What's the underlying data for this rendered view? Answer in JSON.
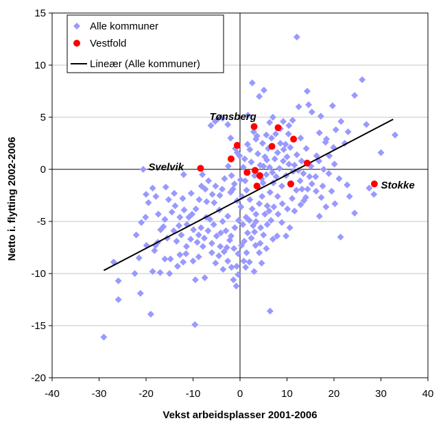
{
  "chart_data": {
    "type": "scatter",
    "title": "",
    "xlabel": "Vekst arbeidsplasser 2001-2006",
    "ylabel": "Netto i. flytting 2002-2006",
    "xlim": [
      -40,
      40
    ],
    "ylim": [
      -20,
      15
    ],
    "xticks": [
      -40,
      -30,
      -20,
      -10,
      0,
      10,
      20,
      30,
      40
    ],
    "yticks": [
      -20,
      -15,
      -10,
      -5,
      0,
      5,
      10,
      15
    ],
    "xtick_labels": [
      "-40",
      "-30",
      "-20",
      "-10",
      "0",
      "10",
      "20",
      "30",
      "40"
    ],
    "ytick_labels": [
      "-20",
      "-15",
      "-10",
      "-5",
      "0",
      "5",
      "10",
      "15"
    ],
    "grid": "horizontal",
    "legend_position": "top-left",
    "series": [
      {
        "name": "Alle kommuner",
        "marker": "diamond",
        "color": "#9999ff",
        "points": [
          [
            -29.0,
            -16.1
          ],
          [
            -26.9,
            -8.9
          ],
          [
            -25.9,
            -10.7
          ],
          [
            -25.9,
            -12.5
          ],
          [
            -22.4,
            -10.0
          ],
          [
            -21.2,
            -11.9
          ],
          [
            -21.5,
            -8.5
          ],
          [
            -19.0,
            -13.9
          ],
          [
            -20.6,
            0.0
          ],
          [
            -18.6,
            -9.8
          ],
          [
            -18.0,
            -7.3
          ],
          [
            -17.0,
            -9.9
          ],
          [
            -16.0,
            -8.6
          ],
          [
            -15.0,
            -10.0
          ],
          [
            -14.8,
            -8.6
          ],
          [
            -13.5,
            -6.9
          ],
          [
            -12.8,
            -8.2
          ],
          [
            -12.1,
            -8.9
          ],
          [
            -11.5,
            -8.1
          ],
          [
            -10.2,
            -4.3
          ],
          [
            -9.5,
            -10.6
          ],
          [
            -8.8,
            -8.4
          ],
          [
            -7.9,
            -7.4
          ],
          [
            -9.6,
            -14.9
          ],
          [
            -7.5,
            -10.4
          ],
          [
            -6.2,
            4.2
          ],
          [
            -5.3,
            4.6
          ],
          [
            -4.8,
            4.8
          ],
          [
            -3.7,
            4.9
          ],
          [
            -2.6,
            4.3
          ],
          [
            -2.0,
            3.0
          ],
          [
            -1.0,
            2.0
          ],
          [
            -0.6,
            1.6
          ],
          [
            -0.1,
            1.3
          ],
          [
            -2.0,
            -2.2
          ],
          [
            -2.6,
            -4.5
          ],
          [
            -3.7,
            -5.0
          ],
          [
            -4.3,
            -2.5
          ],
          [
            -5.5,
            -3.2
          ],
          [
            -6.4,
            -4.8
          ],
          [
            -7.1,
            -3.1
          ],
          [
            -8.2,
            -1.6
          ],
          [
            -10.5,
            -6.7
          ],
          [
            -11.9,
            -3.9
          ],
          [
            -13.0,
            -5.4
          ],
          [
            -13.8,
            -3.5
          ],
          [
            -14.5,
            -4.1
          ],
          [
            -15.2,
            -2.9
          ],
          [
            -16.3,
            -5.5
          ],
          [
            -17.4,
            -4.3
          ],
          [
            -18.6,
            -1.8
          ],
          [
            -19.5,
            -3.2
          ],
          [
            -20.0,
            -2.4
          ],
          [
            -21.0,
            -5.1
          ],
          [
            -19.9,
            -7.3
          ],
          [
            -17.5,
            -7.0
          ],
          [
            -16.0,
            -4.8
          ],
          [
            -14.1,
            -5.9
          ],
          [
            -12.5,
            -6.3
          ],
          [
            -11.3,
            -5.3
          ],
          [
            -9.9,
            -5.8
          ],
          [
            -8.8,
            -6.3
          ],
          [
            -7.6,
            -6.6
          ],
          [
            -6.8,
            -5.9
          ],
          [
            -6.0,
            -7.1
          ],
          [
            -5.0,
            -6.4
          ],
          [
            -4.2,
            -7.4
          ],
          [
            -3.4,
            -7.9
          ],
          [
            -2.6,
            -8.8
          ],
          [
            -1.8,
            -9.4
          ],
          [
            -1.4,
            -10.6
          ],
          [
            -0.4,
            -10.1
          ],
          [
            -0.8,
            -11.2
          ],
          [
            0.8,
            -8.8
          ],
          [
            1.4,
            -8.0
          ],
          [
            0.9,
            -6.9
          ],
          [
            1.6,
            -6.1
          ],
          [
            2.4,
            -6.6
          ],
          [
            3.1,
            -6.0
          ],
          [
            3.3,
            -7.3
          ],
          [
            4.1,
            -8.0
          ],
          [
            4.3,
            -7.1
          ],
          [
            5.0,
            -6.3
          ],
          [
            5.8,
            -5.3
          ],
          [
            6.6,
            -4.9
          ],
          [
            7.0,
            -6.7
          ],
          [
            7.9,
            -6.4
          ],
          [
            6.4,
            -13.6
          ],
          [
            8.9,
            -5.1
          ],
          [
            9.8,
            -6.4
          ],
          [
            10.6,
            -5.6
          ],
          [
            11.6,
            -4.0
          ],
          [
            12.9,
            -3.4
          ],
          [
            13.6,
            -3.0
          ],
          [
            14.4,
            -1.9
          ],
          [
            15.3,
            -1.4
          ],
          [
            16.9,
            -4.5
          ],
          [
            17.3,
            -2.7
          ],
          [
            19.5,
            -2.1
          ],
          [
            20.2,
            -3.3
          ],
          [
            21.4,
            -6.5
          ],
          [
            22.8,
            -1.5
          ],
          [
            23.3,
            -2.6
          ],
          [
            24.4,
            -4.2
          ],
          [
            27.5,
            -1.8
          ],
          [
            28.5,
            -2.4
          ],
          [
            30.0,
            1.6
          ],
          [
            33.0,
            3.3
          ],
          [
            26.9,
            4.3
          ],
          [
            26.0,
            8.6
          ],
          [
            24.4,
            7.1
          ],
          [
            23.0,
            3.6
          ],
          [
            22.3,
            2.5
          ],
          [
            21.5,
            4.6
          ],
          [
            20.4,
            3.8
          ],
          [
            19.7,
            6.1
          ],
          [
            19.9,
            2.1
          ],
          [
            19.0,
            1.3
          ],
          [
            18.2,
            2.6
          ],
          [
            16.9,
            3.5
          ],
          [
            16.3,
            1.3
          ],
          [
            15.3,
            5.5
          ],
          [
            14.6,
            6.2
          ],
          [
            14.3,
            7.5
          ],
          [
            12.5,
            6.0
          ],
          [
            12.1,
            12.7
          ],
          [
            11.2,
            4.7
          ],
          [
            10.3,
            3.4
          ],
          [
            9.7,
            2.4
          ],
          [
            9.2,
            0.8
          ],
          [
            8.4,
            0.1
          ],
          [
            7.7,
            -0.7
          ],
          [
            7.0,
            5.0
          ],
          [
            6.7,
            3.0
          ],
          [
            6.0,
            2.0
          ],
          [
            5.3,
            1.2
          ],
          [
            5.6,
            -0.5
          ],
          [
            4.9,
            -1.3
          ],
          [
            4.3,
            0.4
          ],
          [
            3.8,
            1.5
          ],
          [
            3.4,
            2.9
          ],
          [
            2.9,
            3.6
          ],
          [
            2.6,
            8.3
          ],
          [
            4.1,
            7.0
          ],
          [
            5.1,
            7.6
          ],
          [
            1.7,
            5.2
          ],
          [
            1.6,
            2.4
          ],
          [
            1.0,
            1.0
          ],
          [
            0.7,
            0.2
          ],
          [
            1.1,
            -1.1
          ],
          [
            1.4,
            -2.0
          ],
          [
            2.1,
            -2.9
          ],
          [
            2.6,
            -3.8
          ],
          [
            3.4,
            -4.3
          ],
          [
            4.1,
            -3.3
          ],
          [
            4.7,
            -2.6
          ],
          [
            5.8,
            -3.5
          ],
          [
            6.4,
            -2.2
          ],
          [
            7.1,
            -1.3
          ],
          [
            8.0,
            -2.6
          ],
          [
            8.9,
            -1.6
          ],
          [
            9.8,
            -0.6
          ],
          [
            10.4,
            0.5
          ],
          [
            11.3,
            -0.2
          ],
          [
            12.1,
            1.4
          ],
          [
            13.1,
            0.8
          ],
          [
            14.1,
            2.0
          ],
          [
            15.1,
            0.3
          ],
          [
            16.1,
            -0.7
          ],
          [
            16.8,
            0.8
          ],
          [
            17.8,
            0.0
          ],
          [
            18.9,
            -0.4
          ],
          [
            20.1,
            0.5
          ],
          [
            21.1,
            -0.9
          ],
          [
            0.1,
            -1.0
          ],
          [
            0.4,
            -2.6
          ],
          [
            0.2,
            -3.6
          ],
          [
            -0.6,
            -3.0
          ],
          [
            -1.2,
            -1.4
          ],
          [
            -1.8,
            -0.6
          ],
          [
            -2.5,
            0.3
          ],
          [
            -3.3,
            -0.9
          ],
          [
            -3.8,
            -1.9
          ],
          [
            -4.4,
            -3.9
          ],
          [
            -5.2,
            -1.6
          ],
          [
            -5.9,
            -2.4
          ],
          [
            -6.7,
            -1.1
          ],
          [
            -7.4,
            -1.9
          ],
          [
            -8.0,
            -0.5
          ],
          [
            -8.7,
            -2.9
          ],
          [
            -9.4,
            -3.8
          ],
          [
            -10.4,
            -2.3
          ],
          [
            -10.9,
            -4.6
          ],
          [
            -12.2,
            -2.8
          ],
          [
            -12.8,
            -4.6
          ],
          [
            -15.8,
            -1.7
          ],
          [
            -17.9,
            -2.6
          ],
          [
            -12.0,
            -0.5
          ],
          [
            -3.0,
            -5.9
          ],
          [
            -2.2,
            -6.8
          ],
          [
            -1.3,
            -7.6
          ],
          [
            -0.4,
            -8.1
          ],
          [
            0.3,
            -7.3
          ],
          [
            0.6,
            -5.3
          ],
          [
            1.3,
            -4.6
          ],
          [
            2.0,
            -4.9
          ],
          [
            2.8,
            -5.4
          ],
          [
            3.4,
            -5.0
          ],
          [
            4.4,
            -5.6
          ],
          [
            5.3,
            -4.3
          ],
          [
            6.2,
            -4.0
          ],
          [
            7.2,
            -3.6
          ],
          [
            8.1,
            -4.3
          ],
          [
            9.0,
            -3.3
          ],
          [
            10.1,
            -3.8
          ],
          [
            11.1,
            -2.8
          ],
          [
            12.0,
            -2.0
          ],
          [
            12.8,
            -1.1
          ],
          [
            13.5,
            -0.4
          ],
          [
            14.8,
            -0.7
          ],
          [
            16.2,
            -2.1
          ],
          [
            17.6,
            -1.6
          ],
          [
            18.3,
            -3.6
          ],
          [
            2.1,
            1.9
          ],
          [
            2.4,
            0.7
          ],
          [
            3.1,
            -0.6
          ],
          [
            3.9,
            -1.7
          ],
          [
            4.6,
            -0.9
          ],
          [
            5.0,
            0.3
          ],
          [
            5.7,
            0.9
          ],
          [
            6.3,
            0.2
          ],
          [
            6.9,
            -0.3
          ],
          [
            7.4,
            1.0
          ],
          [
            8.0,
            1.6
          ],
          [
            8.6,
            2.5
          ],
          [
            9.3,
            1.9
          ],
          [
            10.0,
            1.2
          ],
          [
            10.7,
            2.1
          ],
          [
            11.6,
            0.4
          ],
          [
            12.4,
            -0.1
          ],
          [
            13.2,
            -1.9
          ],
          [
            14.0,
            -2.7
          ],
          [
            4.8,
            2.5
          ],
          [
            3.6,
            3.2
          ],
          [
            5.6,
            3.3
          ],
          [
            6.3,
            4.5
          ],
          [
            7.6,
            3.4
          ],
          [
            8.6,
            3.9
          ],
          [
            9.2,
            4.6
          ],
          [
            10.4,
            4.2
          ],
          [
            12.9,
            3.0
          ],
          [
            17.2,
            5.1
          ],
          [
            18.4,
            2.9
          ],
          [
            -6.0,
            -8.0
          ],
          [
            -5.2,
            -9.0
          ],
          [
            -4.5,
            -8.3
          ],
          [
            -3.6,
            -9.6
          ],
          [
            -2.8,
            -7.5
          ],
          [
            -1.9,
            -6.4
          ],
          [
            -1.1,
            -5.6
          ],
          [
            -0.3,
            -4.9
          ],
          [
            -7.2,
            -4.6
          ],
          [
            -8.3,
            -5.6
          ],
          [
            -9.1,
            -7.0
          ],
          [
            -10.0,
            -8.8
          ],
          [
            -11.4,
            -7.4
          ],
          [
            -13.3,
            -9.3
          ],
          [
            -15.5,
            -6.6
          ],
          [
            -16.9,
            -5.8
          ],
          [
            -18.2,
            -7.8
          ],
          [
            -20.1,
            -4.6
          ],
          [
            -22.1,
            -6.3
          ],
          [
            -4.1,
            -6.1
          ],
          [
            -5.6,
            -5.3
          ],
          [
            2.0,
            -8.9
          ],
          [
            3.0,
            -9.8
          ],
          [
            1.2,
            -9.4
          ],
          [
            -0.7,
            -9.3
          ],
          [
            4.6,
            -9.0
          ],
          [
            5.6,
            -7.6
          ],
          [
            -14.0,
            -2.3
          ],
          [
            -1.5,
            -1.9
          ]
        ]
      },
      {
        "name": "Vestfold",
        "marker": "circle",
        "color": "#ff0000",
        "points": [
          [
            -8.4,
            0.1
          ],
          [
            3.0,
            4.1
          ],
          [
            8.1,
            4.0
          ],
          [
            11.4,
            2.9
          ],
          [
            6.8,
            2.2
          ],
          [
            -0.6,
            2.3
          ],
          [
            -1.9,
            1.0
          ],
          [
            14.3,
            0.6
          ],
          [
            1.5,
            -0.3
          ],
          [
            3.2,
            -0.1
          ],
          [
            4.2,
            -0.6
          ],
          [
            3.6,
            -1.6
          ],
          [
            10.8,
            -1.4
          ],
          [
            28.6,
            -1.4
          ]
        ]
      }
    ],
    "trendline": {
      "name": "Lineær (Alle kommuner)",
      "color": "#000000",
      "x": [
        -29.0,
        32.6
      ],
      "y": [
        -9.7,
        4.8
      ]
    },
    "annotations": [
      {
        "text": "Tønsberg",
        "x": -6.5,
        "y": 4.75
      },
      {
        "text": "Svelvik",
        "x": -19.5,
        "y": -0.1
      },
      {
        "text": "Stokke",
        "x": 30.0,
        "y": -1.85
      }
    ]
  }
}
